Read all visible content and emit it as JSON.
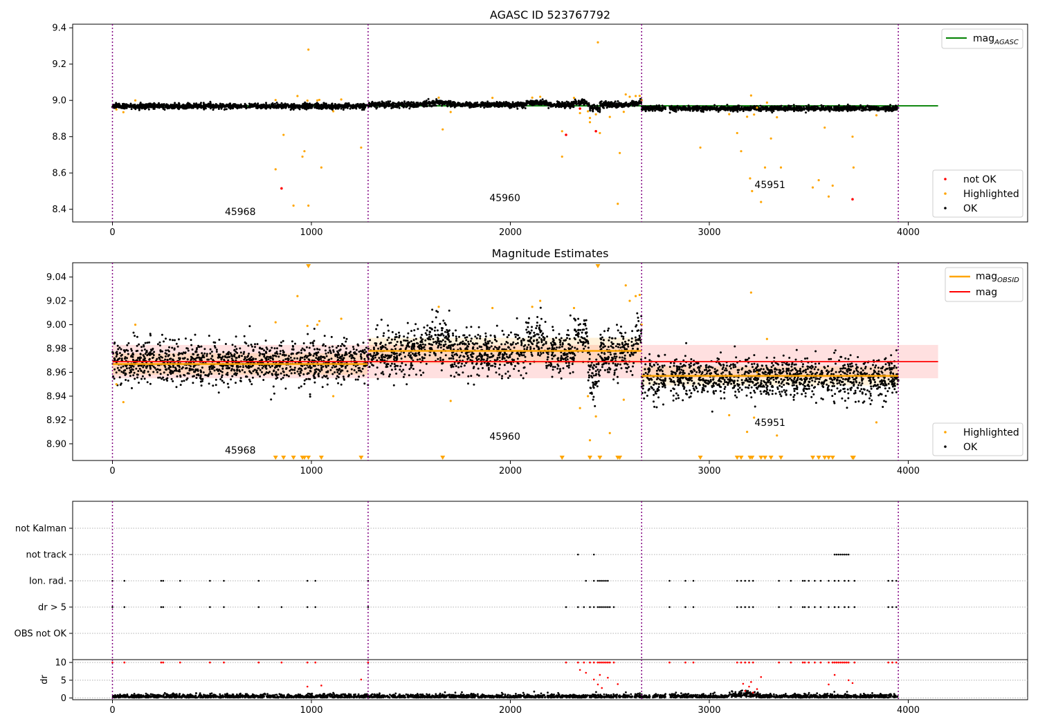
{
  "figure": {
    "panel1": {
      "title": "AGASC ID 523767792",
      "xlim": [
        -200,
        4600
      ],
      "ylim": [
        8.33,
        9.42
      ],
      "xticks": [
        0,
        1000,
        2000,
        3000,
        4000
      ],
      "yticks": [
        8.4,
        8.6,
        8.8,
        9.0,
        9.2,
        9.4
      ],
      "ytick_labels": [
        "8.4",
        "8.6",
        "8.8",
        "9.0",
        "9.2",
        "9.4"
      ],
      "legend_top": {
        "label": "mag",
        "sub": "AGASC",
        "color": "#008000"
      },
      "legend_bottom": [
        {
          "label": "not OK",
          "color": "#ff0000"
        },
        {
          "label": "Highlighted",
          "color": "#ffa500"
        },
        {
          "label": "OK",
          "color": "#000000"
        }
      ]
    },
    "panel2": {
      "title": "Magnitude Estimates",
      "xlim": [
        -200,
        4600
      ],
      "ylim": [
        8.886,
        9.052
      ],
      "xticks": [
        0,
        1000,
        2000,
        3000,
        4000
      ],
      "yticks": [
        8.9,
        8.92,
        8.94,
        8.96,
        8.98,
        9.0,
        9.02,
        9.04
      ],
      "ytick_labels": [
        "8.90",
        "8.92",
        "8.94",
        "8.96",
        "8.98",
        "9.00",
        "9.02",
        "9.04"
      ],
      "legend_top": [
        {
          "label": "mag",
          "sub": "OBSID",
          "color": "#ffa500"
        },
        {
          "label": "mag",
          "sub": "",
          "color": "#ff0000"
        }
      ],
      "legend_bottom": [
        {
          "label": "Highlighted",
          "color": "#ffa500"
        },
        {
          "label": "OK",
          "color": "#000000"
        }
      ]
    },
    "panel3": {
      "xlim": [
        -200,
        4600
      ],
      "flag_labels": [
        "not Kalman",
        "not track",
        "Ion. rad.",
        "dr > 5",
        "OBS not OK"
      ]
    },
    "panel4": {
      "xlim": [
        -200,
        4600
      ],
      "ylim": [
        -0.5,
        10.8
      ],
      "yticks": [
        0,
        5,
        10
      ],
      "ytick_labels": [
        "0",
        "5",
        "10"
      ],
      "ylabel": "dr",
      "xticks": [
        0,
        1000,
        2000,
        3000,
        4000
      ]
    },
    "xtick_labels": [
      "0",
      "1000",
      "2000",
      "3000",
      "4000"
    ]
  },
  "chart_data": {
    "type": "scatter",
    "obsids": [
      {
        "id": "45968",
        "start": 0,
        "end": 1285,
        "mag_obsid": 8.967,
        "mag_obsid_err": 0.009
      },
      {
        "id": "45960",
        "start": 1285,
        "end": 2660,
        "mag_obsid": 8.978,
        "mag_obsid_err": 0.011
      },
      {
        "id": "45951",
        "start": 2660,
        "end": 3950,
        "mag_obsid": 8.957,
        "mag_obsid_err": 0.008
      }
    ],
    "mag_agasc": 8.97,
    "mag": {
      "value": 8.969,
      "err": 0.014,
      "x_range": [
        0,
        4150
      ]
    },
    "series": [
      {
        "name": "OK",
        "color": "#000000",
        "note": "dense points ~8.94-9.00, ~4000 samples"
      },
      {
        "name": "Highlighted",
        "color": "#ffa500",
        "points": [
          [
            20,
            8.95
          ],
          [
            55,
            8.935
          ],
          [
            115,
            9.0
          ],
          [
            820,
            9.002
          ],
          [
            820,
            8.62
          ],
          [
            860,
            8.81
          ],
          [
            910,
            8.42
          ],
          [
            930,
            9.024
          ],
          [
            955,
            8.69
          ],
          [
            965,
            8.72
          ],
          [
            980,
            8.999
          ],
          [
            985,
            9.28
          ],
          [
            985,
            8.42
          ],
          [
            1030,
            9.0
          ],
          [
            1040,
            9.003
          ],
          [
            1050,
            8.63
          ],
          [
            1110,
            8.94
          ],
          [
            1150,
            9.005
          ],
          [
            1250,
            8.74
          ],
          [
            1640,
            9.015
          ],
          [
            1660,
            8.84
          ],
          [
            1700,
            8.936
          ],
          [
            1910,
            9.014
          ],
          [
            2110,
            9.015
          ],
          [
            2150,
            9.02
          ],
          [
            2260,
            8.83
          ],
          [
            2260,
            8.69
          ],
          [
            2320,
            9.014
          ],
          [
            2350,
            8.93
          ],
          [
            2390,
            8.94
          ],
          [
            2400,
            8.903
          ],
          [
            2400,
            8.88
          ],
          [
            2430,
            8.923
          ],
          [
            2440,
            9.32
          ],
          [
            2450,
            8.82
          ],
          [
            2500,
            8.909
          ],
          [
            2540,
            8.43
          ],
          [
            2550,
            8.71
          ],
          [
            2570,
            8.937
          ],
          [
            2580,
            9.033
          ],
          [
            2600,
            9.02
          ],
          [
            2630,
            9.024
          ],
          [
            2650,
            9.025
          ],
          [
            2660,
            9.0
          ],
          [
            2955,
            8.74
          ],
          [
            3100,
            8.924
          ],
          [
            3140,
            8.82
          ],
          [
            3160,
            8.72
          ],
          [
            3190,
            8.91
          ],
          [
            3205,
            8.57
          ],
          [
            3210,
            9.027
          ],
          [
            3215,
            8.5
          ],
          [
            3225,
            8.922
          ],
          [
            3240,
            8.96
          ],
          [
            3260,
            8.44
          ],
          [
            3280,
            8.63
          ],
          [
            3290,
            8.988
          ],
          [
            3310,
            8.79
          ],
          [
            3340,
            8.907
          ],
          [
            3360,
            8.63
          ],
          [
            3520,
            8.52
          ],
          [
            3550,
            8.56
          ],
          [
            3580,
            8.85
          ],
          [
            3600,
            8.47
          ],
          [
            3620,
            8.53
          ],
          [
            3720,
            8.8
          ],
          [
            3725,
            8.63
          ],
          [
            3840,
            8.918
          ]
        ]
      },
      {
        "name": "not OK",
        "color": "#ff0000",
        "points": [
          [
            850,
            8.515
          ],
          [
            2280,
            8.81
          ],
          [
            2350,
            8.955
          ],
          [
            2430,
            8.83
          ],
          [
            3720,
            8.455
          ]
        ]
      }
    ],
    "flags": {
      "Ion. rad.": [
        0,
        60,
        245,
        255,
        340,
        490,
        560,
        735,
        980,
        1020,
        1285,
        2380,
        2420,
        2440,
        2450,
        2460,
        2470,
        2480,
        2490,
        2800,
        2880,
        2920,
        3140,
        3160,
        3180,
        3200,
        3220,
        3350,
        3410,
        3470,
        3480,
        3500,
        3530,
        3560,
        3600,
        3630,
        3650,
        3680,
        3700,
        3730,
        3900,
        3920,
        3940
      ],
      "dr > 5": [
        0,
        60,
        245,
        255,
        340,
        490,
        560,
        735,
        850,
        980,
        1020,
        1285,
        2280,
        2340,
        2370,
        2400,
        2420,
        2440,
        2450,
        2460,
        2470,
        2480,
        2490,
        2500,
        2520,
        2800,
        2880,
        2920,
        3140,
        3160,
        3180,
        3200,
        3220,
        3350,
        3410,
        3470,
        3480,
        3500,
        3530,
        3560,
        3600,
        3630,
        3650,
        3680,
        3700,
        3730,
        3900,
        3920,
        3940
      ],
      "not track": [
        2340,
        2420,
        3630,
        3640,
        3650,
        3660,
        3670,
        3680,
        3690,
        3700
      ],
      "not Kalman": [],
      "OBS not OK": []
    },
    "dr_high": [
      0,
      60,
      245,
      255,
      340,
      490,
      560,
      735,
      850,
      980,
      1020,
      1285,
      2280,
      2340,
      2370,
      2400,
      2420,
      2440,
      2450,
      2460,
      2470,
      2480,
      2490,
      2500,
      2520,
      2800,
      2880,
      2920,
      3140,
      3160,
      3180,
      3200,
      3220,
      3350,
      3410,
      3470,
      3480,
      3500,
      3530,
      3560,
      3600,
      3620,
      3630,
      3640,
      3650,
      3660,
      3670,
      3680,
      3690,
      3700,
      3730,
      3900,
      3920,
      3940
    ]
  }
}
